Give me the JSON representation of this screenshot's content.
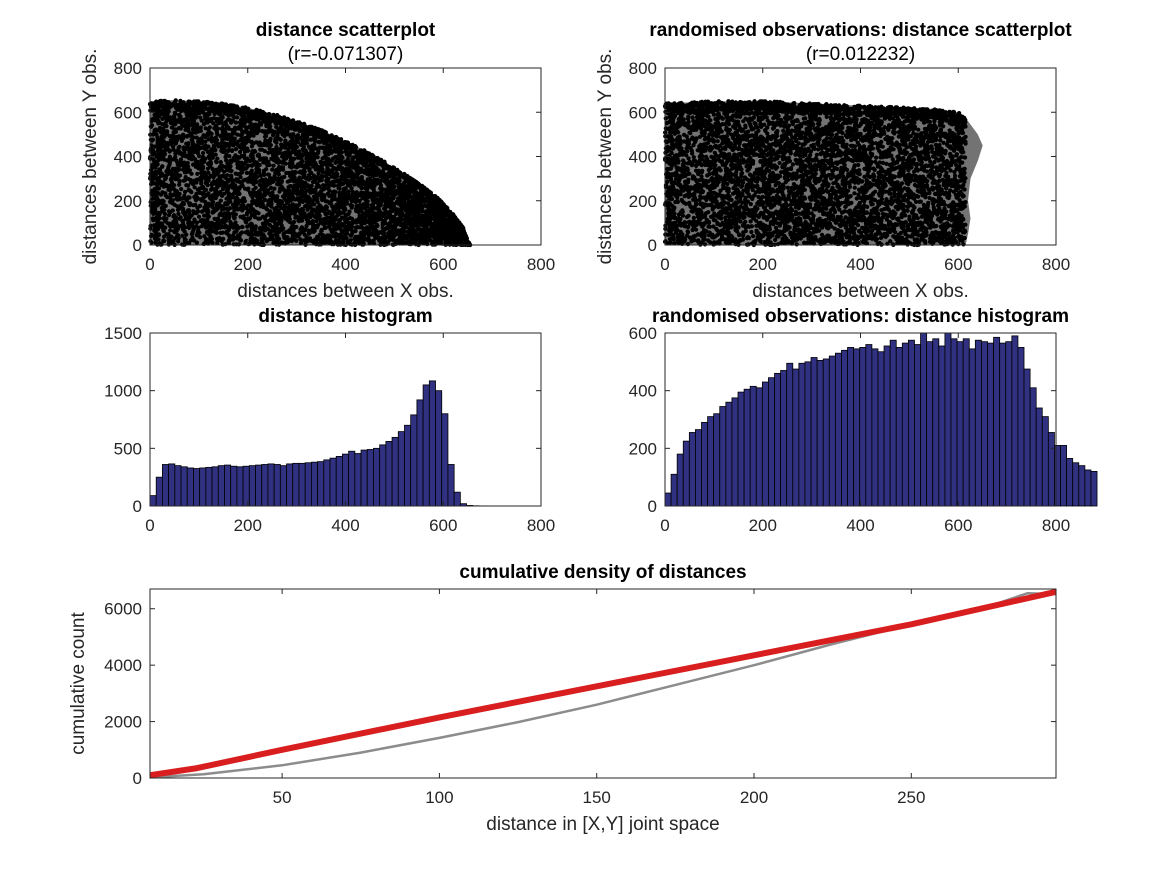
{
  "chart_data": [
    {
      "id": "scatter_original",
      "type": "scatter",
      "title": "distance scatterplot",
      "subtitle": "(r=-0.071307)",
      "xlabel": "distances between X obs.",
      "ylabel": "distances between Y obs.",
      "xlim": [
        0,
        800
      ],
      "ylim": [
        0,
        800
      ],
      "xticks": [
        0,
        200,
        400,
        600,
        800
      ],
      "yticks": [
        0,
        200,
        400,
        600,
        800
      ],
      "grid": false,
      "marker_color": "#000000",
      "boundary": [
        [
          0,
          650
        ],
        [
          50,
          655
        ],
        [
          100,
          650
        ],
        [
          150,
          640
        ],
        [
          200,
          620
        ],
        [
          250,
          595
        ],
        [
          300,
          560
        ],
        [
          350,
          520
        ],
        [
          400,
          470
        ],
        [
          450,
          415
        ],
        [
          500,
          350
        ],
        [
          550,
          280
        ],
        [
          590,
          210
        ],
        [
          620,
          140
        ],
        [
          640,
          80
        ],
        [
          650,
          20
        ],
        [
          655,
          0
        ]
      ]
    },
    {
      "id": "scatter_randomised",
      "type": "scatter",
      "title": "randomised observations: distance scatterplot",
      "subtitle": "(r=0.012232)",
      "xlabel": "distances between X obs.",
      "ylabel": "distances between Y obs.",
      "xlim": [
        0,
        800
      ],
      "ylim": [
        0,
        800
      ],
      "xticks": [
        0,
        200,
        400,
        600,
        800
      ],
      "yticks": [
        0,
        200,
        400,
        600,
        800
      ],
      "grid": false,
      "marker_color": "#000000",
      "boundary": [
        [
          0,
          640
        ],
        [
          100,
          650
        ],
        [
          200,
          650
        ],
        [
          300,
          640
        ],
        [
          400,
          630
        ],
        [
          500,
          620
        ],
        [
          550,
          615
        ],
        [
          600,
          600
        ],
        [
          620,
          560
        ],
        [
          640,
          500
        ],
        [
          650,
          450
        ],
        [
          640,
          380
        ],
        [
          625,
          300
        ],
        [
          620,
          200
        ],
        [
          625,
          120
        ],
        [
          620,
          50
        ],
        [
          615,
          0
        ]
      ]
    },
    {
      "id": "hist_original",
      "type": "bar",
      "title": "distance histogram",
      "xlim": [
        0,
        800
      ],
      "ylim": [
        0,
        1500
      ],
      "xticks": [
        0,
        200,
        400,
        600,
        800
      ],
      "yticks": [
        0,
        500,
        1000,
        1500
      ],
      "bin_width": 12.7,
      "bin_start": 0,
      "bar_color": "#313182",
      "values": [
        90,
        250,
        360,
        365,
        350,
        340,
        330,
        325,
        330,
        335,
        340,
        350,
        355,
        345,
        340,
        345,
        350,
        355,
        360,
        365,
        360,
        350,
        365,
        370,
        370,
        375,
        380,
        385,
        400,
        415,
        430,
        450,
        475,
        455,
        485,
        490,
        500,
        530,
        560,
        595,
        645,
        700,
        790,
        920,
        1050,
        1085,
        1000,
        800,
        360,
        120,
        20,
        5,
        2,
        1,
        1,
        0
      ]
    },
    {
      "id": "hist_randomised",
      "type": "bar",
      "title": "randomised observations: distance histogram",
      "xlim": [
        0,
        800
      ],
      "ylim": [
        0,
        600
      ],
      "xticks": [
        0,
        200,
        400,
        600,
        800
      ],
      "yticks": [
        0,
        200,
        400,
        600
      ],
      "bin_width": 12.45,
      "bin_start": 0,
      "bar_color": "#313182",
      "values": [
        45,
        110,
        180,
        225,
        255,
        265,
        290,
        310,
        320,
        345,
        360,
        375,
        395,
        405,
        415,
        410,
        430,
        445,
        460,
        470,
        495,
        475,
        495,
        500,
        515,
        505,
        510,
        520,
        530,
        540,
        550,
        545,
        550,
        560,
        545,
        535,
        555,
        575,
        550,
        565,
        575,
        560,
        600,
        570,
        580,
        555,
        600,
        580,
        570,
        580,
        545,
        575,
        570,
        565,
        585,
        565,
        570,
        590,
        550,
        475,
        410,
        340,
        310,
        255,
        210,
        210,
        165,
        150,
        140,
        125,
        120
      ]
    },
    {
      "id": "cumulative",
      "type": "line",
      "title": "cumulative density of distances",
      "xlabel": "distance in [X,Y] joint space",
      "ylabel": "cumulative count",
      "xlim": [
        8,
        296
      ],
      "ylim": [
        0,
        6700
      ],
      "xticks": [
        50,
        100,
        150,
        200,
        250
      ],
      "yticks": [
        0,
        2000,
        4000,
        6000
      ],
      "series": [
        {
          "color": "#8c8c8c",
          "width": 2.5,
          "x": [
            8,
            25,
            50,
            75,
            100,
            125,
            150,
            175,
            200,
            225,
            250,
            275,
            287,
            296
          ],
          "y": [
            20,
            130,
            450,
            900,
            1420,
            1980,
            2600,
            3300,
            4000,
            4750,
            5450,
            6100,
            6550,
            6520
          ]
        },
        {
          "color": "#d81e1e",
          "width": 6,
          "x": [
            8,
            23,
            50,
            100,
            150,
            200,
            250,
            296
          ],
          "y": [
            100,
            350,
            1000,
            2150,
            3250,
            4350,
            5450,
            6600
          ]
        }
      ]
    }
  ]
}
